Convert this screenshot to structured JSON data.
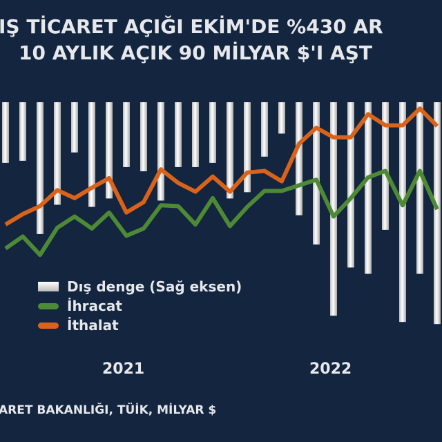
{
  "title": "IŞ TİCARET AÇIĞI EKİM'DE %430 AR",
  "subtitle": "10 AYLIK AÇIK 90 MİLYAR $'I AŞT",
  "source": "ARET BAKANLIĞI, TÜİK, MİLYAR $",
  "colors": {
    "background": "#13253f",
    "exports": "#4e8a35",
    "imports": "#d9631a",
    "balance": "#e8e8e8",
    "text": "#e6e8ec"
  },
  "chart_data": {
    "type": "bar+line",
    "title": "IŞ TİCARET AÇIĞI EKİM'DE %430 AR",
    "subtitle": "10 AYLIK AÇIK 90 MİLYAR $'I AŞT",
    "x_tick_labels": [
      "2021",
      "2022"
    ],
    "legend_placement": "bottom-left",
    "grid": false,
    "series": [
      {
        "name": "Dış denge (Sağ eksen)",
        "type": "bar",
        "axis": "right",
        "values": [
          -2.9,
          -2.8,
          -6.3,
          -4.9,
          -2.4,
          -5.0,
          -4.6,
          -3.1,
          -3.3,
          -4.7,
          -3.1,
          -3.1,
          -2.9,
          -4.6,
          -4.3,
          -2.6,
          -1.5,
          -5.4,
          -6.8,
          -10.2,
          -7.9,
          -8.2,
          -6.1,
          -10.5,
          -8.2,
          -10.6
        ]
      },
      {
        "name": "İhracat",
        "type": "line",
        "axis": "left",
        "values": [
          15.3,
          16.8,
          14.5,
          17.9,
          19.3,
          17.8,
          19.8,
          16.9,
          17.8,
          20.7,
          20.6,
          18.3,
          21.6,
          18.1,
          20.5,
          22.5,
          22.5,
          23.2,
          23.9,
          19.3,
          21.6,
          24.2,
          25.0,
          20.7,
          25.0,
          20.2
        ]
      },
      {
        "name": "İthalat",
        "type": "line",
        "axis": "left",
        "values": [
          18.3,
          19.6,
          20.6,
          22.6,
          21.6,
          22.9,
          24.1,
          19.8,
          21.1,
          25.2,
          23.5,
          22.4,
          24.3,
          22.4,
          24.8,
          25.0,
          23.7,
          28.4,
          30.4,
          29.2,
          29.2,
          32.1,
          30.7,
          30.7,
          32.8,
          30.6
        ]
      }
    ]
  },
  "legend": [
    {
      "label": "Dış denge (Sağ eksen)"
    },
    {
      "label": "İhracat"
    },
    {
      "label": "İthalat"
    }
  ]
}
